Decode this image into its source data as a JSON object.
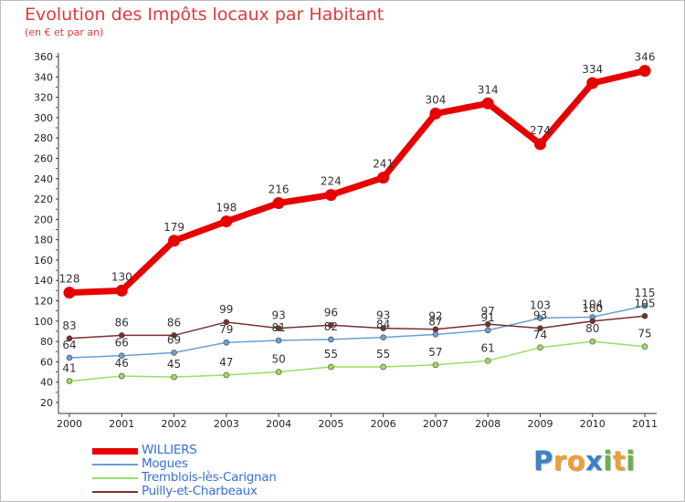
{
  "title": "Evolution des Impôts locaux par Habitant",
  "subtitle": "(en € et par an)",
  "logo": {
    "text": "Proxiti",
    "letters": [
      "P",
      "r",
      "o",
      "x",
      "i",
      "t",
      "i"
    ],
    "colors": [
      "#3a82c4",
      "#f0a030",
      "#f0a030",
      "#3a82c4",
      "#6ab04c",
      "#f0a030",
      "#6ab04c"
    ]
  },
  "chart_data": {
    "type": "line",
    "title": "Evolution des Impôts locaux par Habitant",
    "subtitle": "(en € et par an)",
    "x": [
      "2000",
      "2001",
      "2002",
      "2003",
      "2004",
      "2005",
      "2006",
      "2007",
      "2008",
      "2009",
      "2010",
      "2011"
    ],
    "ylim": [
      20,
      360
    ],
    "yticks": [
      20,
      40,
      60,
      80,
      100,
      120,
      140,
      160,
      180,
      200,
      220,
      240,
      260,
      280,
      300,
      320,
      340,
      360
    ],
    "grid": false,
    "legend_position": "bottom-left",
    "series": [
      {
        "name": "WILLIERS",
        "color": "#e80000",
        "values": [
          128,
          130,
          179,
          198,
          216,
          224,
          241,
          304,
          314,
          274,
          334,
          346
        ]
      },
      {
        "name": "Mogues",
        "color": "#6a9fd4",
        "values": [
          64,
          66,
          69,
          79,
          81,
          82,
          84,
          87,
          91,
          103,
          104,
          115
        ]
      },
      {
        "name": "Tremblois-lès-Carignan",
        "color": "#99dd66",
        "values": [
          41,
          46,
          45,
          47,
          50,
          55,
          55,
          57,
          61,
          74,
          80,
          75
        ]
      },
      {
        "name": "Puilly-et-Charbeaux",
        "color": "#7a2f2f",
        "values": [
          83,
          86,
          86,
          99,
          93,
          96,
          93,
          92,
          97,
          93,
          100,
          105
        ]
      }
    ]
  }
}
